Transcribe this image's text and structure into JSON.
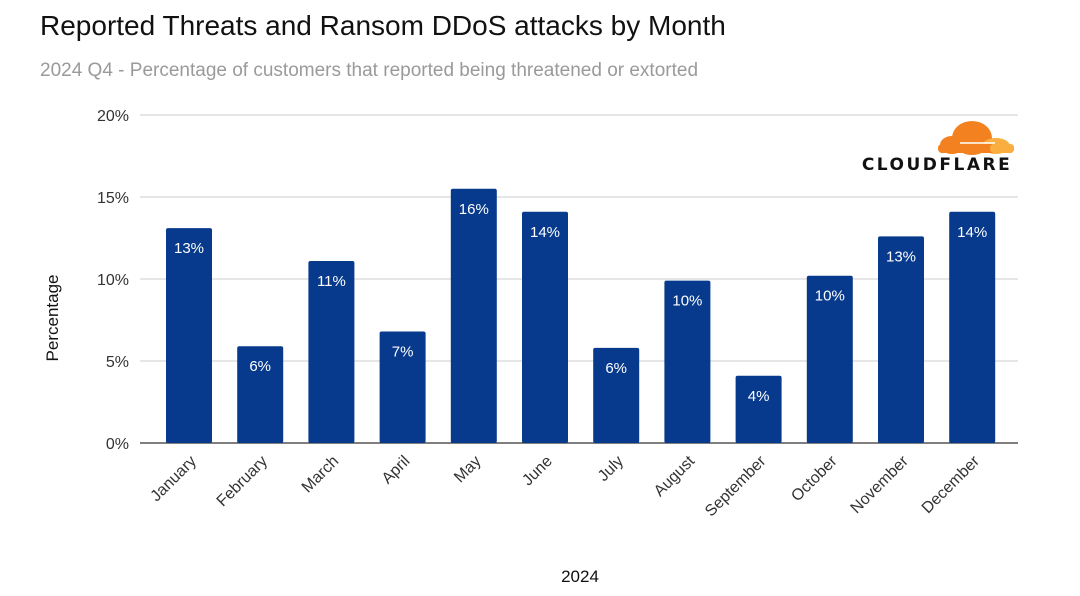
{
  "chart_data": {
    "type": "bar",
    "title": "Reported Threats and Ransom DDoS attacks by Month",
    "subtitle": "2024 Q4 - Percentage of customers that reported being threatened or extorted",
    "xlabel": "2024",
    "ylabel": "Percentage",
    "categories": [
      "January",
      "February",
      "March",
      "April",
      "May",
      "June",
      "July",
      "August",
      "September",
      "October",
      "November",
      "December"
    ],
    "values": [
      13.1,
      5.9,
      11.1,
      6.8,
      15.5,
      14.1,
      5.8,
      9.9,
      4.1,
      10.2,
      12.6,
      14.1
    ],
    "data_labels": [
      "13%",
      "6%",
      "11%",
      "7%",
      "16%",
      "14%",
      "6%",
      "10%",
      "4%",
      "10%",
      "13%",
      "14%"
    ],
    "ylim": [
      0,
      20
    ],
    "yticks": [
      "0%",
      "5%",
      "10%",
      "15%",
      "20%"
    ],
    "grid": true,
    "bar_color": "#073a8c",
    "logo": {
      "text": "CLOUDFLARE",
      "colors": [
        "#f48120",
        "#faae40"
      ]
    }
  }
}
